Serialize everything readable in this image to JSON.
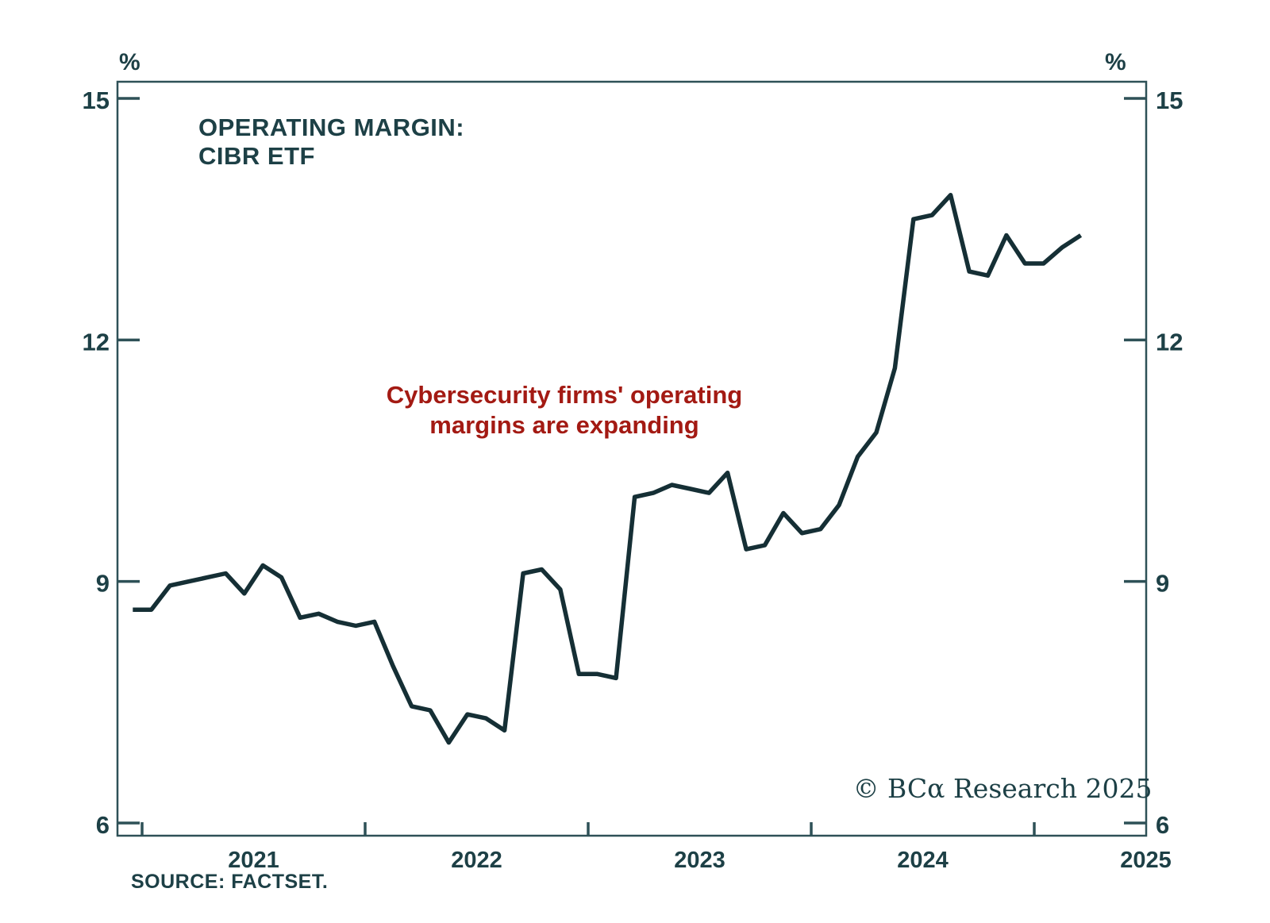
{
  "title": {
    "line1": "OPERATING MARGIN:",
    "line2": "CIBR ETF"
  },
  "axis_unit": {
    "left": "%",
    "right": "%"
  },
  "annotation": {
    "line1": "Cybersecurity firms' operating",
    "line2": "margins are expanding"
  },
  "watermark": {
    "text": "© BCα Research 2025"
  },
  "source": {
    "text": "SOURCE: FACTSET."
  },
  "axes": {
    "y_ticks": [
      15,
      12,
      9,
      6
    ],
    "x_years": [
      "2021",
      "2022",
      "2023",
      "2024",
      "2025"
    ]
  },
  "colors": {
    "line": "#152f35",
    "text": "#1d4046",
    "axis": "#2e5157",
    "annotation": "#a31a13",
    "background": "#ffffff"
  },
  "chart_data": {
    "type": "line",
    "title": "OPERATING MARGIN: CIBR ETF",
    "ylabel": "%",
    "ylim": [
      5.8,
      15.2
    ],
    "y_ticks": [
      6,
      9,
      12,
      15
    ],
    "x_tick_labels": [
      "2021",
      "2022",
      "2023",
      "2024",
      "2025"
    ],
    "frequency": "monthly",
    "grid": false,
    "legend_position": "none",
    "annotation": "Cybersecurity firms' operating margins are expanding",
    "source": "SOURCE: FACTSET.",
    "watermark": "© BCα Research 2025",
    "series": [
      {
        "name": "Operating margin: CIBR ETF",
        "x": [
          "2020-12",
          "2021-01",
          "2021-02",
          "2021-03",
          "2021-04",
          "2021-05",
          "2021-06",
          "2021-07",
          "2021-08",
          "2021-09",
          "2021-10",
          "2021-11",
          "2021-12",
          "2022-01",
          "2022-02",
          "2022-03",
          "2022-04",
          "2022-05",
          "2022-06",
          "2022-07",
          "2022-08",
          "2022-09",
          "2022-10",
          "2022-11",
          "2022-12",
          "2023-01",
          "2023-02",
          "2023-03",
          "2023-04",
          "2023-05",
          "2023-06",
          "2023-07",
          "2023-08",
          "2023-09",
          "2023-10",
          "2023-11",
          "2023-12",
          "2024-01",
          "2024-02",
          "2024-03",
          "2024-04",
          "2024-05",
          "2024-06",
          "2024-07",
          "2024-08",
          "2024-09",
          "2024-10",
          "2024-11",
          "2024-12",
          "2025-01",
          "2025-02",
          "2025-03"
        ],
        "values": [
          8.65,
          8.65,
          8.95,
          9.0,
          9.05,
          9.1,
          8.85,
          9.2,
          9.05,
          8.55,
          8.6,
          8.5,
          8.45,
          8.5,
          7.95,
          7.45,
          7.4,
          7.0,
          7.35,
          7.3,
          7.15,
          9.1,
          9.15,
          8.9,
          7.85,
          7.85,
          7.8,
          10.05,
          10.1,
          10.2,
          10.15,
          10.1,
          10.35,
          9.4,
          9.45,
          9.85,
          9.6,
          9.65,
          9.95,
          10.55,
          10.85,
          11.65,
          13.5,
          13.55,
          13.8,
          12.85,
          12.8,
          13.3,
          12.95,
          12.95,
          13.15,
          13.3
        ]
      }
    ]
  }
}
